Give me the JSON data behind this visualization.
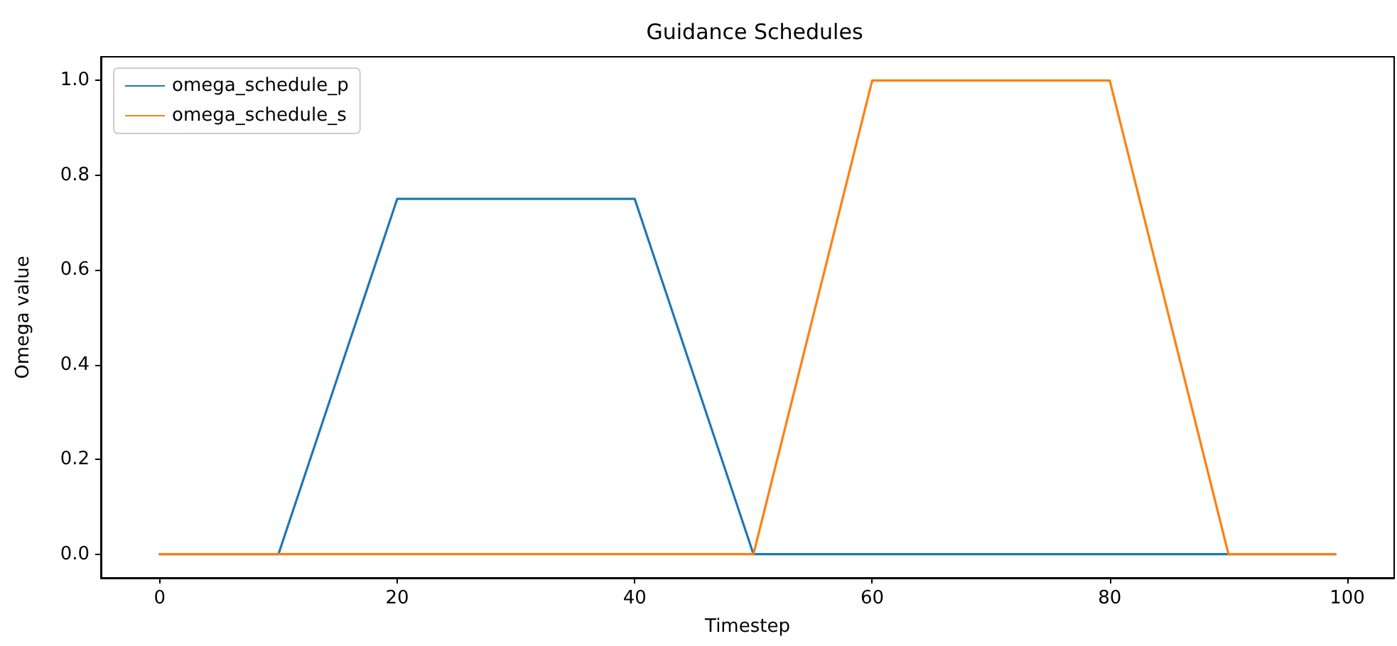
{
  "chart_data": {
    "type": "line",
    "title": "Guidance Schedules",
    "xlabel": "Timestep",
    "ylabel": "Omega value",
    "series": [
      {
        "name": "omega_schedule_p",
        "color": "#1f77b4",
        "x": [
          0,
          10,
          20,
          40,
          50,
          99
        ],
        "values": [
          0,
          0,
          0.75,
          0.75,
          0,
          0
        ]
      },
      {
        "name": "omega_schedule_s",
        "color": "#ff7f0e",
        "x": [
          0,
          50,
          60,
          80,
          90,
          99
        ],
        "values": [
          0,
          0,
          1,
          1,
          0,
          0
        ]
      }
    ],
    "xlim": [
      -4.95,
      103.95
    ],
    "xticks": [
      0,
      20,
      40,
      60,
      80,
      100
    ],
    "ylim": [
      -0.05,
      1.05
    ],
    "yticks": [
      {
        "value": 0,
        "label": "0.0"
      },
      0.2,
      0.4,
      0.6,
      0.8,
      {
        "value": 1,
        "label": "1.0"
      }
    ],
    "grid": false,
    "legend": "top left",
    "marker": "none",
    "line_style": "solid"
  }
}
